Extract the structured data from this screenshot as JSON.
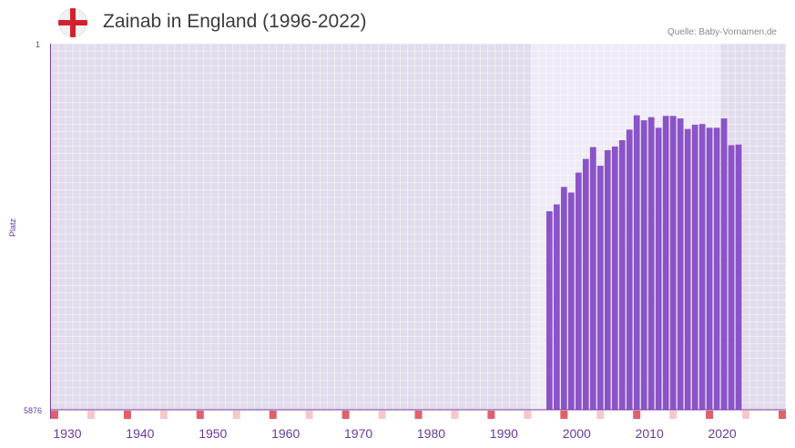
{
  "header": {
    "title": "Zainab in England (1996-2022)",
    "source": "Quelle: Baby-Vornamen.de",
    "flag_icon": "england-flag-icon"
  },
  "colors": {
    "bar": "#8a54c8",
    "plot_bg": "#e2dcec",
    "highlight_bg": "#efebf6",
    "axis": "#7a3aa0",
    "tick_label": "#6a3a9c",
    "marker_strong": "#e0606a",
    "marker_light": "#f5c8cc"
  },
  "chart_data": {
    "type": "bar",
    "title": "Zainab in England (1996-2022)",
    "ylabel": "Platz",
    "xlabel": "",
    "y_axis_inverted": true,
    "y_tick_labels": [
      "1",
      "5876"
    ],
    "ylim": [
      5876,
      1
    ],
    "xlim": [
      1928,
      2029
    ],
    "x_ticks": [
      1930,
      1940,
      1950,
      1960,
      1970,
      1980,
      1990,
      2000,
      2010,
      2020
    ],
    "highlight_range": [
      1994,
      2019
    ],
    "years": [
      1996,
      1997,
      1998,
      1999,
      2000,
      2001,
      2002,
      2003,
      2004,
      2005,
      2006,
      2007,
      2008,
      2009,
      2010,
      2011,
      2012,
      2013,
      2014,
      2015,
      2016,
      2017,
      2018,
      2019,
      2020,
      2021,
      2022
    ],
    "values": [
      2690,
      2580,
      2300,
      2390,
      2070,
      1850,
      1660,
      1960,
      1710,
      1650,
      1550,
      1380,
      1150,
      1230,
      1180,
      1350,
      1160,
      1160,
      1200,
      1370,
      1300,
      1290,
      1350,
      1350,
      1200,
      1630,
      1620
    ],
    "decade_markers": [
      1928,
      1938,
      1948,
      1958,
      1968,
      1978,
      1988,
      1998,
      2008,
      2018,
      2028
    ],
    "midpoint_markers": [
      1933,
      1943,
      1953,
      1963,
      1973,
      1983,
      1993,
      2003,
      2013,
      2023
    ]
  }
}
